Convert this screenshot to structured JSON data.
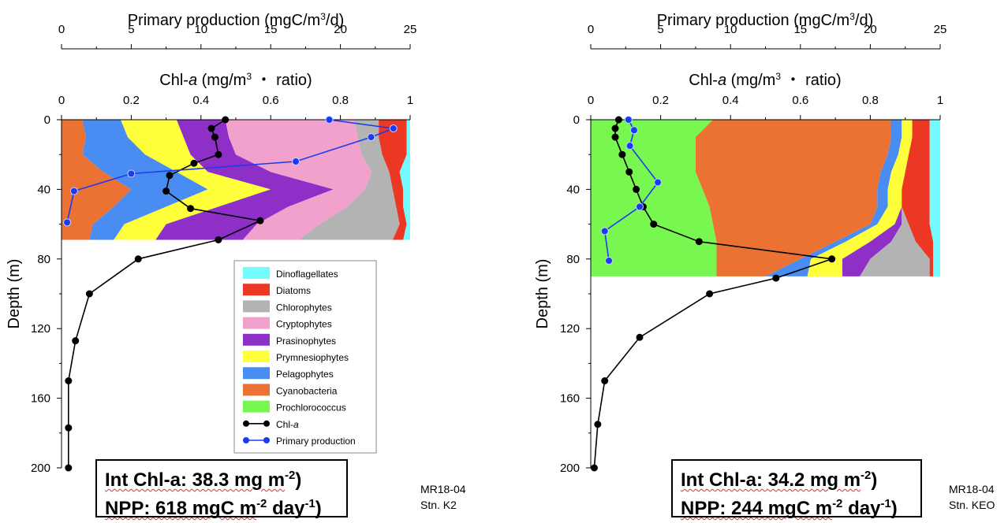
{
  "legend": [
    {
      "key": "dino",
      "label": "Dinoflagellates",
      "color": "#72FCFF",
      "kind": "area"
    },
    {
      "key": "diatom",
      "label": "Diatoms",
      "color": "#EC3725",
      "kind": "area"
    },
    {
      "key": "chloro",
      "label": "Chlorophytes",
      "color": "#B3B3B3",
      "kind": "area"
    },
    {
      "key": "crypto",
      "label": "Cryptophytes",
      "color": "#F2A0CC",
      "kind": "area"
    },
    {
      "key": "prasino",
      "label": "Prasinophytes",
      "color": "#8E2FC8",
      "kind": "area"
    },
    {
      "key": "prym",
      "label": "Prymnesiophytes",
      "color": "#FFFF3B",
      "kind": "area"
    },
    {
      "key": "pelago",
      "label": "Pelagophytes",
      "color": "#4A8DF2",
      "kind": "area"
    },
    {
      "key": "cyano",
      "label": "Cyanobacteria",
      "color": "#EB7233",
      "kind": "area"
    },
    {
      "key": "prochloro",
      "label": "Prochlorococcus",
      "color": "#78F750",
      "kind": "area"
    },
    {
      "key": "chl",
      "label_main": "Chl-",
      "label_italic": "a",
      "color": "#000000",
      "kind": "line"
    },
    {
      "key": "pp",
      "label": "Primary production",
      "color": "#1A3CF0",
      "kind": "line"
    }
  ],
  "chart_data": [
    {
      "type": "area",
      "station_label": "Stn. K2",
      "cruise_label": "MR18-04",
      "title_top_main": "Primary production (mgC/m",
      "title_top_sup": "3",
      "title_top_end": "/d)",
      "title_mid_main": "Chl-",
      "title_mid_italic": "a",
      "title_mid_end": " (mg/m",
      "title_mid_sup": "3",
      "title_mid_tail": " ・ ratio)",
      "ylabel": "Depth (m)",
      "pp_xlim": [
        0,
        25
      ],
      "pp_ticks": [
        0,
        5,
        10,
        15,
        20,
        25
      ],
      "chl_xlim": [
        0,
        1
      ],
      "chl_ticks": [
        0,
        0.2,
        0.4,
        0.6,
        0.8,
        1
      ],
      "ylim": [
        0,
        200
      ],
      "yticks": [
        0,
        40,
        80,
        120,
        160,
        200
      ],
      "ratio_depths": [
        0,
        10,
        20,
        30,
        40,
        50,
        60,
        69
      ],
      "ratio_bounds": {
        "cyano": [
          0.06,
          0.07,
          0.06,
          0.12,
          0.2,
          0.15,
          0.09,
          0.08
        ],
        "pelago": [
          0.17,
          0.19,
          0.24,
          0.33,
          0.42,
          0.3,
          0.18,
          0.15
        ],
        "prym": [
          0.33,
          0.35,
          0.37,
          0.42,
          0.6,
          0.45,
          0.3,
          0.27
        ],
        "prasino": [
          0.47,
          0.48,
          0.5,
          0.6,
          0.78,
          0.65,
          0.56,
          0.52
        ],
        "crypto": [
          0.84,
          0.85,
          0.86,
          0.89,
          0.87,
          0.82,
          0.74,
          0.68
        ],
        "chloro": [
          0.91,
          0.91,
          0.92,
          0.94,
          0.95,
          0.96,
          0.97,
          0.95
        ],
        "diatom": [
          0.99,
          0.99,
          0.99,
          0.97,
          0.98,
          0.98,
          0.99,
          0.98
        ],
        "dino": [
          1,
          1,
          1,
          1,
          1,
          1,
          1,
          1
        ]
      },
      "chl": {
        "depth": [
          0,
          5,
          10,
          20,
          25,
          32,
          41,
          51,
          58,
          69,
          80,
          100,
          127,
          150,
          177,
          200
        ],
        "value": [
          0.47,
          0.43,
          0.44,
          0.45,
          0.38,
          0.31,
          0.3,
          0.37,
          0.57,
          0.45,
          0.22,
          0.08,
          0.04,
          0.02,
          0.02,
          0.02
        ]
      },
      "pp": {
        "depth": [
          0,
          5,
          10,
          24,
          31,
          41,
          59
        ],
        "value": [
          19.2,
          23.8,
          22.2,
          16.8,
          5.0,
          0.9,
          0.4
        ]
      },
      "summary_line1_main": "Int Chl-a: 38.3 mg m",
      "summary_line1_sup": "-2",
      "summary_line1_end": ")",
      "summary_line2_main": "NPP: 618 mgC m",
      "summary_line2_sup": "-2",
      "summary_line2_mid": " day",
      "summary_line2_sup2": "-1",
      "summary_line2_end": ")"
    },
    {
      "type": "area",
      "station_label": "Stn. KEO",
      "cruise_label": "MR18-04",
      "title_top_main": "Primary production (mgC/m",
      "title_top_sup": "3",
      "title_top_end": "/d)",
      "title_mid_main": "Chl-",
      "title_mid_italic": "a",
      "title_mid_end": " (mg/m",
      "title_mid_sup": "3",
      "title_mid_tail": " ・ ratio)",
      "ylabel": "Depth (m)",
      "pp_xlim": [
        0,
        25
      ],
      "pp_ticks": [
        0,
        5,
        10,
        15,
        20,
        25
      ],
      "chl_xlim": [
        0,
        1
      ],
      "chl_ticks": [
        0,
        0.2,
        0.4,
        0.6,
        0.8,
        1
      ],
      "ylim": [
        0,
        200
      ],
      "yticks": [
        0,
        40,
        80,
        120,
        160,
        200
      ],
      "ratio_depths": [
        0,
        10,
        20,
        30,
        40,
        50,
        60,
        70,
        80,
        90
      ],
      "ratio_bounds": {
        "prochloro": [
          0.35,
          0.3,
          0.3,
          0.3,
          0.32,
          0.34,
          0.35,
          0.36,
          0.36,
          0.36
        ],
        "cyano": [
          0.86,
          0.86,
          0.85,
          0.83,
          0.82,
          0.82,
          0.8,
          0.7,
          0.6,
          0.5
        ],
        "pelago": [
          0.89,
          0.89,
          0.88,
          0.86,
          0.85,
          0.85,
          0.82,
          0.73,
          0.63,
          0.62
        ],
        "prym": [
          0.92,
          0.92,
          0.91,
          0.9,
          0.89,
          0.89,
          0.87,
          0.8,
          0.72,
          0.72
        ],
        "prasino": [
          0.92,
          0.92,
          0.91,
          0.9,
          0.89,
          0.89,
          0.89,
          0.86,
          0.8,
          0.77
        ],
        "chloro": [
          0.92,
          0.92,
          0.91,
          0.9,
          0.89,
          0.89,
          0.91,
          0.93,
          0.97,
          0.97
        ],
        "diatom": [
          0.97,
          0.97,
          0.97,
          0.97,
          0.97,
          0.97,
          0.97,
          0.98,
          0.98,
          0.98
        ],
        "dino": [
          1,
          1,
          1,
          1,
          1,
          1,
          1,
          1,
          1,
          1
        ]
      },
      "chl": {
        "depth": [
          0,
          5,
          10,
          20,
          30,
          40,
          50,
          60,
          70,
          80,
          91,
          100,
          125,
          150,
          175,
          200
        ],
        "value": [
          0.08,
          0.07,
          0.07,
          0.09,
          0.11,
          0.13,
          0.15,
          0.18,
          0.31,
          0.69,
          0.53,
          0.34,
          0.14,
          0.04,
          0.02,
          0.01
        ]
      },
      "pp": {
        "depth": [
          0,
          6,
          15,
          36,
          50,
          64,
          81
        ],
        "value": [
          2.7,
          3.1,
          2.8,
          4.8,
          3.5,
          1.0,
          1.3
        ]
      },
      "summary_line1_main": "Int Chl-a: 34.2 mg m",
      "summary_line1_sup": "-2",
      "summary_line1_end": ")",
      "summary_line2_main": "NPP: 244 mgC m",
      "summary_line2_sup": "-2",
      "summary_line2_mid": " day",
      "summary_line2_sup2": "-1",
      "summary_line2_end": ")"
    }
  ]
}
